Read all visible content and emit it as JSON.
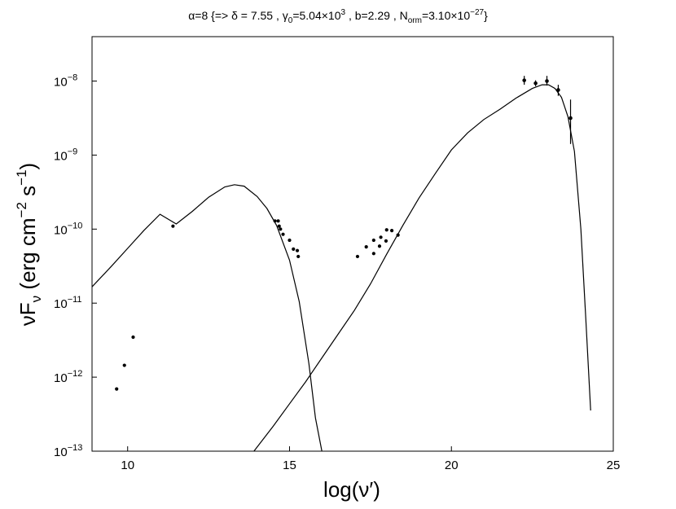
{
  "chart_data": {
    "type": "scatter",
    "title": {
      "alpha": "α=8",
      "delta": "{=> δ = 7.55 ,",
      "gamma": "γ",
      "gamma_sub": "0",
      "gamma_val": "=5.04×10",
      "gamma_exp": "3",
      "b": ", b=2.29 , N",
      "norm_sub": "orm",
      "norm_val": "=3.10×10",
      "norm_exp": "−27",
      "close": "}"
    },
    "xlabel": "log(ν′)",
    "ylabel": {
      "main": "νF",
      "sub": "ν",
      "unit1": " (erg cm",
      "exp1": "−2",
      "unit2": " s",
      "exp2": "−1",
      "close": ")"
    },
    "xlim": [
      8.9,
      25
    ],
    "ylim_log10": [
      -13,
      -7.4
    ],
    "y_scale": "log",
    "x_ticks": [
      {
        "value": 10,
        "label": "10"
      },
      {
        "value": 15,
        "label": "15"
      },
      {
        "value": 20,
        "label": "20"
      },
      {
        "value": 25,
        "label": "25"
      }
    ],
    "y_ticks": [
      {
        "exp": -13,
        "base": "10",
        "exp_label": "−13"
      },
      {
        "exp": -12,
        "base": "10",
        "exp_label": "−12"
      },
      {
        "exp": -11,
        "base": "10",
        "exp_label": "−11"
      },
      {
        "exp": -10,
        "base": "10",
        "exp_label": "−10"
      },
      {
        "exp": -9,
        "base": "10",
        "exp_label": "−9"
      },
      {
        "exp": -8,
        "base": "10",
        "exp_label": "−8"
      }
    ],
    "points_log10": [
      {
        "x": 9.66,
        "y": -12.16
      },
      {
        "x": 9.9,
        "y": -11.84
      },
      {
        "x": 10.17,
        "y": -11.46
      },
      {
        "x": 11.4,
        "y": -9.96
      },
      {
        "x": 14.55,
        "y": -9.89
      },
      {
        "x": 14.65,
        "y": -9.89
      },
      {
        "x": 14.68,
        "y": -9.96
      },
      {
        "x": 14.72,
        "y": -10.0
      },
      {
        "x": 14.8,
        "y": -10.07
      },
      {
        "x": 15.0,
        "y": -10.15
      },
      {
        "x": 15.12,
        "y": -10.27
      },
      {
        "x": 15.24,
        "y": -10.29
      },
      {
        "x": 15.27,
        "y": -10.37
      },
      {
        "x": 17.1,
        "y": -10.37
      },
      {
        "x": 17.37,
        "y": -10.24
      },
      {
        "x": 17.6,
        "y": -10.33
      },
      {
        "x": 17.6,
        "y": -10.15
      },
      {
        "x": 17.78,
        "y": -10.23
      },
      {
        "x": 17.82,
        "y": -10.11
      },
      {
        "x": 17.98,
        "y": -10.16
      },
      {
        "x": 18.0,
        "y": -10.01
      },
      {
        "x": 18.16,
        "y": -10.02
      },
      {
        "x": 18.35,
        "y": -10.08
      }
    ],
    "error_points_log10": [
      {
        "x": 22.25,
        "y": -7.99,
        "lo": -8.05,
        "hi": -7.93
      },
      {
        "x": 22.6,
        "y": -8.03,
        "lo": -8.07,
        "hi": -7.99
      },
      {
        "x": 22.95,
        "y": -8.0,
        "lo": -8.06,
        "hi": -7.93
      },
      {
        "x": 23.3,
        "y": -8.12,
        "lo": -8.2,
        "hi": -8.05
      },
      {
        "x": 23.68,
        "y": -8.5,
        "lo": -8.85,
        "hi": -8.25
      }
    ],
    "series": [
      {
        "curve": "synchrotron",
        "x": [
          8.9,
          9.5,
          10,
          10.5,
          11,
          11.5,
          12,
          12.5,
          13,
          13.3,
          13.6,
          14,
          14.3,
          14.6,
          15,
          15.3,
          15.6,
          15.8,
          16.0
        ],
        "y": [
          -10.78,
          -10.5,
          -10.26,
          -10.02,
          -9.8,
          -9.93,
          -9.76,
          -9.57,
          -9.43,
          -9.4,
          -9.42,
          -9.56,
          -9.72,
          -9.95,
          -10.42,
          -10.98,
          -11.82,
          -12.55,
          -13.0
        ]
      },
      {
        "curve": "inverse-compton",
        "x": [
          13.9,
          14.5,
          15,
          15.5,
          16,
          16.5,
          17,
          17.5,
          18,
          18.5,
          19,
          19.5,
          20,
          20.5,
          21,
          21.5,
          22,
          22.5,
          22.8,
          23.0,
          23.2,
          23.4,
          23.6,
          23.8,
          24.0,
          24.15,
          24.3
        ],
        "y": [
          -13.0,
          -12.66,
          -12.36,
          -12.06,
          -11.74,
          -11.42,
          -11.1,
          -10.74,
          -10.34,
          -9.95,
          -9.58,
          -9.25,
          -8.93,
          -8.7,
          -8.52,
          -8.38,
          -8.23,
          -8.1,
          -8.05,
          -8.05,
          -8.1,
          -8.22,
          -8.48,
          -8.95,
          -10.0,
          -11.2,
          -12.45
        ]
      }
    ],
    "grid": false,
    "legend": "none"
  }
}
